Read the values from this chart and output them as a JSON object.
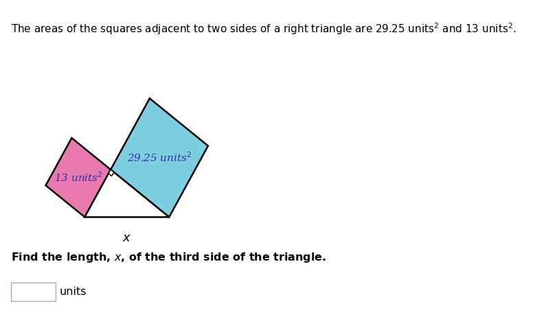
{
  "area_pink": 13,
  "area_cyan": 29.25,
  "pink_color": "#e87ab0",
  "cyan_color": "#7dcfdf",
  "edge_color": "#000000",
  "white_color": "#ffffff",
  "label_pink": "13 units$^2$",
  "label_cyan": "29.25 units$^2$",
  "xlabel": "$x$",
  "title_str": "The areas of the squares adjacent to two sides of a right triangle are $29.25\\ \\mathrm{units}^2$ and $13\\ \\mathrm{units}^2$.",
  "question_str": "Find the length, $x$, of the third side of the triangle.",
  "units_str": "units",
  "label_color": "#3030a0",
  "figsize": [
    7.79,
    4.71
  ],
  "dpi": 100,
  "bg_color": "#ffffff"
}
